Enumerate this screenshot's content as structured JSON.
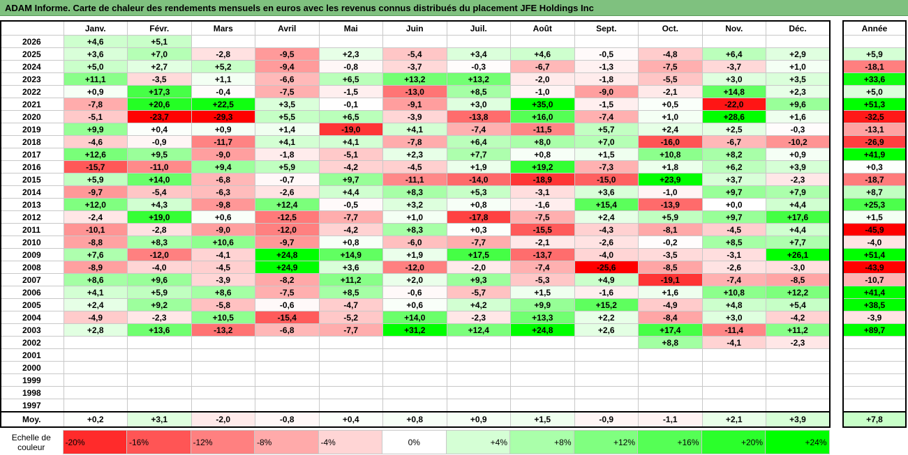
{
  "title": "ADAM Informe. Carte de chaleur des rendements mensuels en euros avec les revenus connus distribués du placement JFE Holdings Inc",
  "chart_data": {
    "type": "heatmap",
    "months": [
      "Janv.",
      "Févr.",
      "Mars",
      "Avril",
      "Mai",
      "Juin",
      "Juil.",
      "Août",
      "Sept.",
      "Oct.",
      "Nov.",
      "Déc."
    ],
    "year_header": "Année",
    "avg_label": "Moy.",
    "rows": [
      {
        "year": "2026",
        "m": [
          4.6,
          5.1,
          null,
          null,
          null,
          null,
          null,
          null,
          null,
          null,
          null,
          null
        ],
        "y": null
      },
      {
        "year": "2025",
        "m": [
          3.6,
          7.0,
          -2.8,
          -9.5,
          2.3,
          -5.4,
          3.4,
          4.6,
          -0.5,
          -4.8,
          6.4,
          2.9
        ],
        "y": 5.9
      },
      {
        "year": "2024",
        "m": [
          5.0,
          2.7,
          5.2,
          -9.4,
          -0.8,
          -3.7,
          -0.3,
          -6.7,
          -1.3,
          -7.5,
          -3.7,
          1.0
        ],
        "y": -18.1
      },
      {
        "year": "2023",
        "m": [
          11.1,
          -3.5,
          1.1,
          -6.6,
          6.5,
          13.2,
          13.2,
          -2.0,
          -1.8,
          -5.5,
          3.0,
          3.5
        ],
        "y": 33.6
      },
      {
        "year": "2022",
        "m": [
          0.9,
          17.3,
          -0.4,
          -7.5,
          -1.5,
          -13.0,
          8.5,
          -1.0,
          -9.0,
          -2.1,
          14.8,
          2.3
        ],
        "y": 5.0
      },
      {
        "year": "2021",
        "m": [
          -7.8,
          20.6,
          22.5,
          3.5,
          -0.1,
          -9.1,
          3.0,
          35.0,
          -1.5,
          0.5,
          -22.0,
          9.6
        ],
        "y": 51.3
      },
      {
        "year": "2020",
        "m": [
          -5.1,
          -23.7,
          -29.3,
          5.5,
          6.5,
          -3.9,
          -13.8,
          16.0,
          -7.4,
          1.0,
          28.6,
          1.6
        ],
        "y": -32.5
      },
      {
        "year": "2019",
        "m": [
          9.9,
          0.4,
          0.9,
          1.4,
          -19.0,
          4.1,
          -7.4,
          -11.5,
          5.7,
          2.4,
          2.5,
          -0.3
        ],
        "y": -13.1
      },
      {
        "year": "2018",
        "m": [
          -4.6,
          -0.9,
          -11.7,
          4.1,
          4.1,
          -7.8,
          6.4,
          8.0,
          7.0,
          -16.0,
          -6.7,
          -10.2
        ],
        "y": -26.9
      },
      {
        "year": "2017",
        "m": [
          12.6,
          9.5,
          -9.0,
          -1.8,
          -5.1,
          2.3,
          7.7,
          0.8,
          1.5,
          10.8,
          8.2,
          0.9
        ],
        "y": 41.9
      },
      {
        "year": "2016",
        "m": [
          -15.7,
          -11.0,
          9.4,
          5.9,
          -4.2,
          -4.5,
          1.9,
          19.2,
          -7.3,
          1.8,
          6.2,
          3.9
        ],
        "y": 0.3
      },
      {
        "year": "2015",
        "m": [
          5.9,
          14.0,
          -6.8,
          -0.7,
          9.7,
          -11.1,
          -14.0,
          -18.9,
          -15.0,
          23.9,
          3.7,
          -2.3
        ],
        "y": -18.7
      },
      {
        "year": "2014",
        "m": [
          -9.7,
          -5.4,
          -6.3,
          -2.6,
          4.4,
          8.3,
          5.3,
          -3.1,
          3.6,
          -1.0,
          9.7,
          7.9
        ],
        "y": 8.7
      },
      {
        "year": "2013",
        "m": [
          12.0,
          4.3,
          -9.8,
          12.4,
          -0.5,
          3.2,
          0.8,
          -1.6,
          15.4,
          -13.9,
          0.0,
          4.4
        ],
        "y": 25.3
      },
      {
        "year": "2012",
        "m": [
          -2.4,
          19.0,
          0.6,
          -12.5,
          -7.7,
          1.0,
          -17.8,
          -7.5,
          2.4,
          5.9,
          9.7,
          17.6
        ],
        "y": 1.5
      },
      {
        "year": "2011",
        "m": [
          -10.1,
          -2.8,
          -9.0,
          -12.0,
          -4.2,
          8.3,
          0.3,
          -15.5,
          -4.3,
          -8.1,
          -4.5,
          4.4
        ],
        "y": -45.9
      },
      {
        "year": "2010",
        "m": [
          -8.8,
          8.3,
          10.6,
          -9.7,
          0.8,
          -6.0,
          -7.7,
          -2.1,
          -2.6,
          -0.2,
          8.5,
          7.7
        ],
        "y": -4.0
      },
      {
        "year": "2009",
        "m": [
          7.6,
          -12.0,
          -4.1,
          24.8,
          14.9,
          1.9,
          17.5,
          -13.7,
          -4.0,
          -3.5,
          -3.1,
          26.1
        ],
        "y": 51.4
      },
      {
        "year": "2008",
        "m": [
          -8.9,
          -4.0,
          -4.5,
          24.9,
          3.6,
          -12.0,
          -2.0,
          -7.4,
          -25.6,
          -8.5,
          -2.6,
          -3.0
        ],
        "y": -43.9
      },
      {
        "year": "2007",
        "m": [
          8.6,
          9.6,
          -3.9,
          -8.2,
          11.2,
          2.0,
          9.3,
          -5.3,
          4.9,
          -19.1,
          -7.4,
          -8.5
        ],
        "y": -10.7
      },
      {
        "year": "2006",
        "m": [
          4.1,
          5.9,
          8.6,
          -7.5,
          8.5,
          -0.6,
          -5.7,
          1.5,
          -1.6,
          1.6,
          10.8,
          12.2
        ],
        "y": 41.4
      },
      {
        "year": "2005",
        "m": [
          2.4,
          9.2,
          -5.8,
          -0.6,
          -4.7,
          0.6,
          4.2,
          9.9,
          15.2,
          -4.9,
          4.8,
          5.4
        ],
        "y": 38.5
      },
      {
        "year": "2004",
        "m": [
          -4.9,
          -2.3,
          10.5,
          -15.4,
          -5.2,
          14.0,
          -2.3,
          13.3,
          2.2,
          -8.4,
          3.0,
          -4.2
        ],
        "y": -3.9
      },
      {
        "year": "2003",
        "m": [
          2.8,
          13.6,
          -13.2,
          -6.8,
          -7.7,
          31.2,
          12.4,
          24.8,
          2.6,
          17.4,
          -11.4,
          11.2
        ],
        "y": 89.7
      },
      {
        "year": "2002",
        "m": [
          null,
          null,
          null,
          null,
          null,
          null,
          null,
          null,
          null,
          8.8,
          -4.1,
          -2.3
        ],
        "y": null
      },
      {
        "year": "2001",
        "m": [
          null,
          null,
          null,
          null,
          null,
          null,
          null,
          null,
          null,
          null,
          null,
          null
        ],
        "y": null
      },
      {
        "year": "2000",
        "m": [
          null,
          null,
          null,
          null,
          null,
          null,
          null,
          null,
          null,
          null,
          null,
          null
        ],
        "y": null
      },
      {
        "year": "1999",
        "m": [
          null,
          null,
          null,
          null,
          null,
          null,
          null,
          null,
          null,
          null,
          null,
          null
        ],
        "y": null
      },
      {
        "year": "1998",
        "m": [
          null,
          null,
          null,
          null,
          null,
          null,
          null,
          null,
          null,
          null,
          null,
          null
        ],
        "y": null
      },
      {
        "year": "1997",
        "m": [
          null,
          null,
          null,
          null,
          null,
          null,
          null,
          null,
          null,
          null,
          null,
          null
        ],
        "y": null
      }
    ],
    "averages": [
      0.2,
      3.1,
      -2.0,
      -0.8,
      0.4,
      0.8,
      0.9,
      1.5,
      -0.9,
      -1.1,
      2.1,
      3.9
    ],
    "year_average": 7.8
  },
  "scale": {
    "label_line1": "Echelle de",
    "label_line2": "couleur",
    "steps": [
      {
        "text": "-20%",
        "v": -20
      },
      {
        "text": "-16%",
        "v": -16
      },
      {
        "text": "-12%",
        "v": -12
      },
      {
        "text": "-8%",
        "v": -8
      },
      {
        "text": "-4%",
        "v": -4
      },
      {
        "text": "0%",
        "v": 0
      },
      {
        "text": "+4%",
        "v": 4
      },
      {
        "text": "+8%",
        "v": 8
      },
      {
        "text": "+12%",
        "v": 12
      },
      {
        "text": "+16%",
        "v": 16
      },
      {
        "text": "+20%",
        "v": 20
      },
      {
        "text": "+24%",
        "v": 24
      }
    ]
  }
}
